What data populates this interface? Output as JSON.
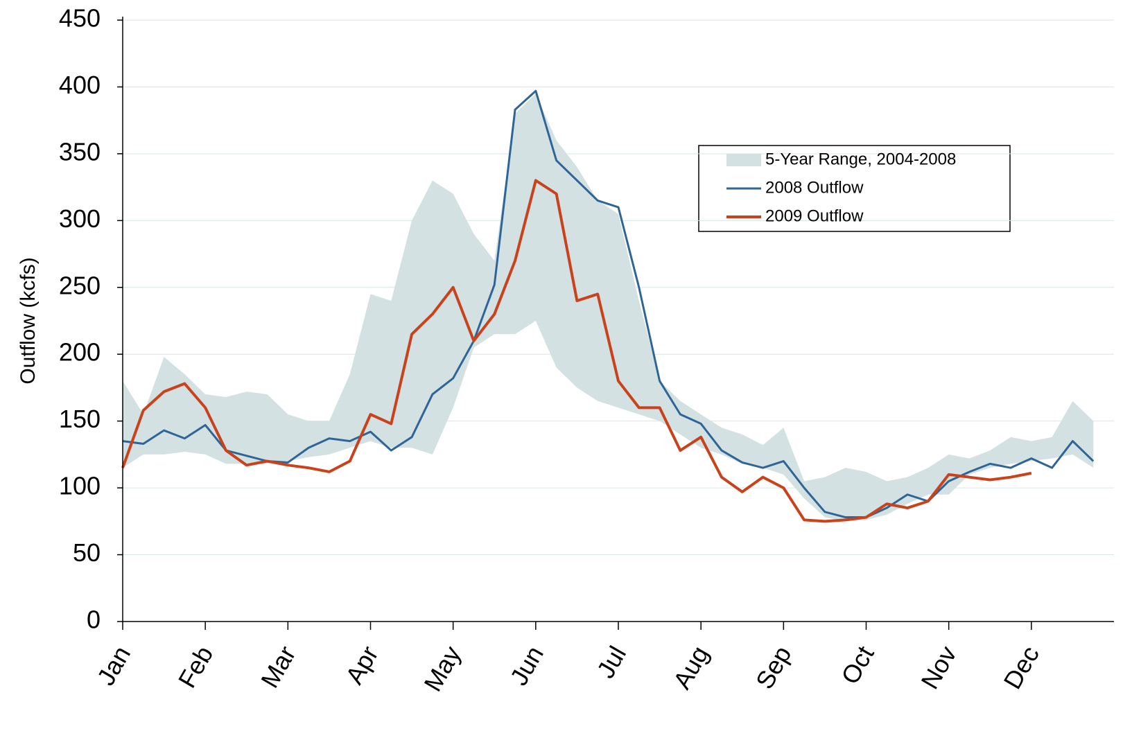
{
  "chart_data": {
    "type": "line",
    "ylabel": "Outflow (kcfs)",
    "xlim": [
      0,
      12
    ],
    "xticks": [
      {
        "value": 0,
        "label": "Jan"
      },
      {
        "value": 1,
        "label": "Feb"
      },
      {
        "value": 2,
        "label": "Mar"
      },
      {
        "value": 3,
        "label": "Apr"
      },
      {
        "value": 4,
        "label": "May"
      },
      {
        "value": 5,
        "label": "Jun"
      },
      {
        "value": 6,
        "label": "Jul"
      },
      {
        "value": 7,
        "label": "Aug"
      },
      {
        "value": 8,
        "label": "Sep"
      },
      {
        "value": 9,
        "label": "Oct"
      },
      {
        "value": 10,
        "label": "Nov"
      },
      {
        "value": 11,
        "label": "Dec"
      }
    ],
    "ylim": [
      0,
      450
    ],
    "yticks": [
      0,
      50,
      100,
      150,
      200,
      250,
      300,
      350,
      400,
      450
    ],
    "grid": true,
    "x": [
      0,
      0.25,
      0.5,
      0.75,
      1,
      1.25,
      1.5,
      1.75,
      2,
      2.25,
      2.5,
      2.75,
      3,
      3.25,
      3.5,
      3.75,
      4,
      4.25,
      4.5,
      4.75,
      5,
      5.25,
      5.5,
      5.75,
      6,
      6.25,
      6.5,
      6.75,
      7,
      7.25,
      7.5,
      7.75,
      8,
      8.25,
      8.5,
      8.75,
      9,
      9.25,
      9.5,
      9.75,
      10,
      10.25,
      10.5,
      10.75,
      11,
      11.25,
      11.5,
      11.75
    ],
    "series": [
      {
        "name": "5-Year Range, 2004-2008",
        "color": "#d3e1e2",
        "low": [
          115,
          125,
          125,
          127,
          125,
          118,
          118,
          118,
          120,
          123,
          125,
          130,
          135,
          130,
          130,
          125,
          160,
          205,
          215,
          215,
          225,
          190,
          175,
          165,
          160,
          155,
          150,
          140,
          130,
          125,
          118,
          115,
          110,
          92,
          78,
          75,
          76,
          80,
          88,
          95,
          95,
          110,
          115,
          118,
          120,
          122,
          125,
          115
        ],
        "high": [
          180,
          155,
          198,
          185,
          170,
          168,
          172,
          170,
          155,
          150,
          150,
          185,
          245,
          240,
          300,
          330,
          320,
          290,
          270,
          380,
          395,
          360,
          340,
          315,
          305,
          240,
          180,
          165,
          155,
          145,
          140,
          132,
          145,
          105,
          108,
          115,
          112,
          105,
          108,
          115,
          125,
          122,
          128,
          138,
          135,
          138,
          165,
          150
        ]
      },
      {
        "name": "2008 Outflow",
        "color": "#2e6596",
        "values": [
          135,
          133,
          143,
          137,
          147,
          128,
          124,
          120,
          119,
          130,
          137,
          135,
          142,
          128,
          138,
          170,
          182,
          210,
          252,
          383,
          397,
          345,
          330,
          315,
          310,
          250,
          180,
          155,
          148,
          128,
          119,
          115,
          120,
          100,
          82,
          78,
          78,
          85,
          95,
          90,
          105,
          112,
          118,
          115,
          122,
          115,
          135,
          120
        ]
      },
      {
        "name": "2009 Outflow",
        "color": "#c9421c",
        "values": [
          115,
          158,
          172,
          178,
          160,
          128,
          117,
          120,
          117,
          115,
          112,
          120,
          155,
          148,
          215,
          230,
          250,
          210,
          230,
          270,
          330,
          320,
          240,
          245,
          180,
          160,
          160,
          128,
          138,
          108,
          97,
          108,
          100,
          76,
          75,
          76,
          78,
          88,
          85,
          90,
          110,
          108,
          106,
          108,
          111,
          null,
          null,
          null
        ]
      }
    ]
  }
}
